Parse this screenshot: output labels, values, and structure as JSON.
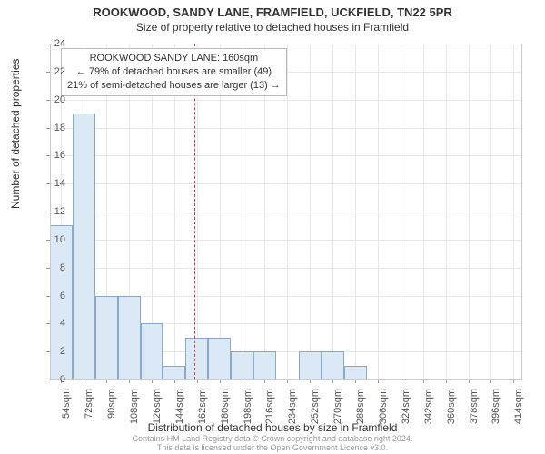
{
  "title": "ROOKWOOD, SANDY LANE, FRAMFIELD, UCKFIELD, TN22 5PR",
  "subtitle": "Size of property relative to detached houses in Framfield",
  "ylabel": "Number of detached properties",
  "xlabel": "Distribution of detached houses by size in Framfield",
  "footer": "Contains HM Land Registry data © Crown copyright and database right 2024.\nThis data is licensed under the Open Government Licence v3.0.",
  "annotation": {
    "line1": "ROOKWOOD SANDY LANE: 160sqm",
    "line2": "← 79% of detached houses are smaller (49)",
    "line3": "21% of semi-detached houses are larger (13) →"
  },
  "chart": {
    "type": "histogram",
    "background_color": "#ffffff",
    "grid_color": "#e8e8e8",
    "bar_fill": "#dbe8f5",
    "bar_border": "#8aa9c9",
    "reference_line_color": "#d04040",
    "reference_value": 160,
    "xlim": [
      45,
      421
    ],
    "ylim": [
      0,
      24
    ],
    "ytick_step": 2,
    "xtick_step": 18,
    "xtick_start": 54,
    "xtick_suffix": "sqm",
    "bar_width_x": 18,
    "title_fontsize": 13,
    "label_fontsize": 12,
    "tick_fontsize": 11,
    "annotation_fontsize": 11,
    "bars": [
      {
        "x": 45,
        "h": 11
      },
      {
        "x": 63,
        "h": 19
      },
      {
        "x": 81,
        "h": 6
      },
      {
        "x": 99,
        "h": 6
      },
      {
        "x": 117,
        "h": 4
      },
      {
        "x": 135,
        "h": 1
      },
      {
        "x": 153,
        "h": 3
      },
      {
        "x": 171,
        "h": 3
      },
      {
        "x": 189,
        "h": 2
      },
      {
        "x": 207,
        "h": 2
      },
      {
        "x": 225,
        "h": 0
      },
      {
        "x": 243,
        "h": 2
      },
      {
        "x": 261,
        "h": 2
      },
      {
        "x": 279,
        "h": 1
      }
    ]
  }
}
